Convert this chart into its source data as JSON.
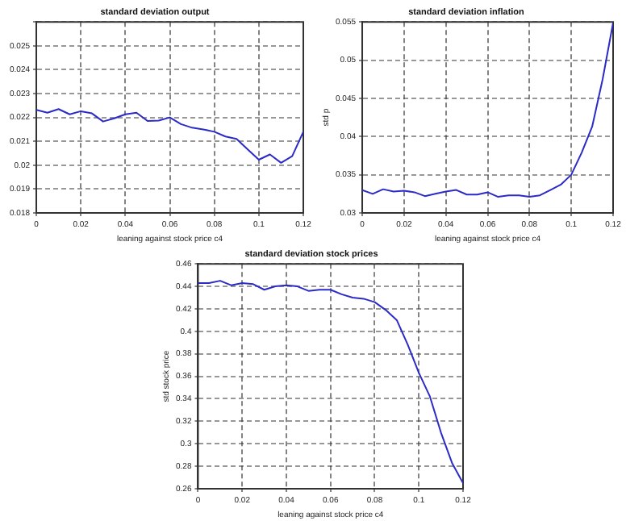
{
  "chart_data": [
    {
      "type": "line",
      "title": "standard deviation output",
      "xlabel": "leaning against stock price c4",
      "grid": true,
      "marker": "none",
      "line_style": "solid",
      "legend": false,
      "x": [
        0,
        0.005,
        0.01,
        0.015,
        0.02,
        0.025,
        0.03,
        0.035,
        0.04,
        0.045,
        0.05,
        0.055,
        0.06,
        0.065,
        0.07,
        0.075,
        0.08,
        0.085,
        0.09,
        0.095,
        0.1,
        0.105,
        0.11,
        0.115,
        0.12
      ],
      "series": [
        {
          "color": "#2b2bc8",
          "values": [
            0.02232,
            0.0222,
            0.02235,
            0.02213,
            0.02226,
            0.02217,
            0.02183,
            0.02196,
            0.02213,
            0.0222,
            0.02185,
            0.02187,
            0.022,
            0.02172,
            0.02157,
            0.0215,
            0.0214,
            0.0212,
            0.0211,
            0.02066,
            0.02023,
            0.02045,
            0.0201,
            0.02038,
            0.0214
          ]
        }
      ],
      "xlim": [
        0,
        0.12
      ],
      "xticks": [
        0,
        0.02,
        0.04,
        0.06,
        0.08,
        0.1,
        0.12
      ],
      "ylim": [
        0.018,
        0.026
      ],
      "yticks": [
        0.018,
        0.019,
        0.02,
        0.021,
        0.022,
        0.023,
        0.024,
        0.025,
        {
          "value": 0.026,
          "label": null
        }
      ]
    },
    {
      "type": "line",
      "title": "standard deviation inflation",
      "xlabel": "leaning against stock price c4",
      "ylabel": "std p",
      "grid": true,
      "marker": "none",
      "line_style": "solid",
      "legend": false,
      "x": [
        0,
        0.005,
        0.01,
        0.015,
        0.02,
        0.025,
        0.03,
        0.035,
        0.04,
        0.045,
        0.05,
        0.055,
        0.06,
        0.065,
        0.07,
        0.075,
        0.08,
        0.085,
        0.09,
        0.095,
        0.1,
        0.105,
        0.11,
        0.115,
        0.12
      ],
      "series": [
        {
          "color": "#2b2bc8",
          "values": [
            0.033,
            0.0325,
            0.0331,
            0.0328,
            0.0329,
            0.0327,
            0.0322,
            0.0325,
            0.0328,
            0.033,
            0.0324,
            0.0324,
            0.0327,
            0.0321,
            0.0323,
            0.0323,
            0.0321,
            0.0323,
            0.033,
            0.0337,
            0.035,
            0.0379,
            0.0413,
            0.0475,
            0.0549
          ]
        }
      ],
      "xlim": [
        0,
        0.12
      ],
      "xticks": [
        0,
        0.02,
        0.04,
        0.06,
        0.08,
        0.1,
        0.12
      ],
      "ylim": [
        0.03,
        0.055
      ],
      "yticks": [
        0.03,
        0.035,
        0.04,
        0.045,
        0.05,
        0.055
      ]
    },
    {
      "type": "line",
      "title": "standard deviation stock prices",
      "xlabel": "leaning against stock price c4",
      "ylabel": "std stock price",
      "grid": true,
      "marker": "none",
      "line_style": "solid",
      "legend": false,
      "x": [
        0,
        0.005,
        0.01,
        0.015,
        0.02,
        0.025,
        0.03,
        0.035,
        0.04,
        0.045,
        0.05,
        0.055,
        0.06,
        0.065,
        0.07,
        0.075,
        0.08,
        0.085,
        0.09,
        0.095,
        0.1,
        0.105,
        0.11,
        0.115,
        0.12
      ],
      "series": [
        {
          "color": "#2b2bc8",
          "values": [
            0.443,
            0.443,
            0.445,
            0.441,
            0.443,
            0.442,
            0.437,
            0.44,
            0.441,
            0.44,
            0.436,
            0.437,
            0.437,
            0.433,
            0.43,
            0.429,
            0.426,
            0.419,
            0.41,
            0.388,
            0.363,
            0.342,
            0.31,
            0.283,
            0.265
          ]
        }
      ],
      "xlim": [
        0,
        0.12
      ],
      "xticks": [
        0,
        0.02,
        0.04,
        0.06,
        0.08,
        0.1,
        0.12
      ],
      "ylim": [
        0.26,
        0.46
      ],
      "yticks": [
        0.26,
        0.28,
        0.3,
        0.32,
        0.34,
        0.36,
        0.38,
        0.4,
        0.42,
        0.44,
        0.46
      ]
    }
  ]
}
